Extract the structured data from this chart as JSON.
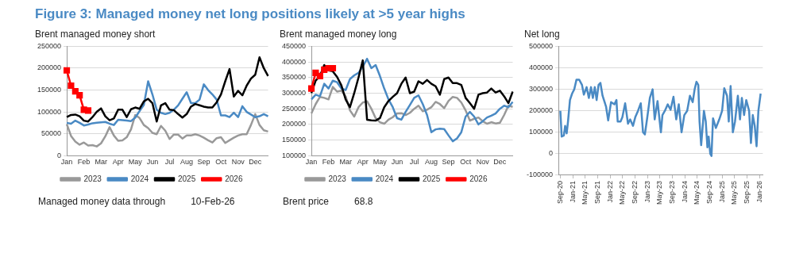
{
  "chart_data": [
    {
      "type": "line",
      "title": "Figure 3: Managed money net long positions likely at >5 year highs",
      "subtitle": "Brent managed money short",
      "categories": [
        "Jan",
        null,
        null,
        null,
        "Feb",
        null,
        null,
        null,
        "Mar",
        null,
        null,
        null,
        "Apr",
        null,
        null,
        null,
        "May",
        null,
        null,
        null,
        "Jun",
        null,
        null,
        null,
        "Jul",
        null,
        null,
        null,
        "Aug",
        null,
        null,
        null,
        "Sep",
        null,
        null,
        null,
        "Oct",
        null,
        null,
        null,
        "Nov",
        null,
        null,
        null,
        "Dec",
        null,
        null,
        null
      ],
      "ylim": [
        0,
        250000
      ],
      "yticks": [
        0,
        50000,
        100000,
        150000,
        200000,
        250000
      ],
      "grid": "y",
      "legend": "bottom",
      "annotations": [
        "Managed money data through",
        "10-Feb-26"
      ],
      "series": [
        {
          "name": "2023",
          "color": "#999999",
          "values": [
            72000,
            45000,
            32000,
            25000,
            30000,
            23000,
            24000,
            21000,
            28000,
            44000,
            65000,
            46000,
            34000,
            35000,
            42000,
            60000,
            93000,
            86000,
            70000,
            63000,
            52000,
            49000,
            68000,
            57000,
            38000,
            48000,
            48000,
            39000,
            46000,
            46000,
            49000,
            46000,
            41000,
            35000,
            30000,
            40000,
            42000,
            29000,
            35000,
            41000,
            46000,
            49000,
            49000,
            70000,
            95000,
            70000,
            58000,
            55000
          ]
        },
        {
          "name": "2024",
          "color": "#4a8ac4",
          "values": [
            75000,
            73000,
            80000,
            75000,
            69000,
            71000,
            74000,
            75000,
            76000,
            77000,
            73000,
            70000,
            82000,
            81000,
            80000,
            79000,
            87000,
            102000,
            116000,
            170000,
            140000,
            105000,
            98000,
            95000,
            98000,
            105000,
            115000,
            130000,
            145000,
            120000,
            120000,
            128000,
            163000,
            150000,
            140000,
            128000,
            92000,
            92000,
            88000,
            98000,
            88000,
            113000,
            100000,
            94000,
            88000,
            90000,
            95000,
            90000
          ]
        },
        {
          "name": "2025",
          "color": "#000000",
          "values": [
            88000,
            93000,
            94000,
            90000,
            80000,
            78000,
            88000,
            100000,
            108000,
            90000,
            81000,
            85000,
            105000,
            105000,
            88000,
            106000,
            110000,
            107000,
            124000,
            130000,
            120000,
            78000,
            115000,
            120000,
            105000,
            104000,
            95000,
            87000,
            95000,
            112000,
            118000,
            115000,
            112000,
            110000,
            110000,
            122000,
            140000,
            170000,
            198000,
            135000,
            148000,
            138000,
            160000,
            176000,
            185000,
            225000,
            200000,
            182000
          ]
        },
        {
          "name": "2026",
          "color": "#ff0000",
          "marker": "square",
          "values": [
            195000,
            160000,
            147000,
            138000,
            105000,
            103000,
            null,
            null,
            null,
            null,
            null,
            null,
            null,
            null,
            null,
            null,
            null,
            null,
            null,
            null,
            null,
            null,
            null,
            null,
            null,
            null,
            null,
            null,
            null,
            null,
            null,
            null,
            null,
            null,
            null,
            null,
            null,
            null,
            null,
            null,
            null,
            null,
            null,
            null,
            null,
            null,
            null,
            null
          ]
        }
      ]
    },
    {
      "type": "line",
      "title": "Brent managed money long",
      "categories": [
        "Jan",
        null,
        null,
        null,
        "Feb",
        null,
        null,
        null,
        "Mar",
        null,
        null,
        null,
        "Apr",
        null,
        null,
        null,
        "May",
        null,
        null,
        null,
        "Jun",
        null,
        null,
        null,
        "Jul",
        null,
        null,
        null,
        "Aug",
        null,
        null,
        null,
        "Sep",
        null,
        null,
        null,
        "Oct",
        null,
        null,
        null,
        "Nov",
        null,
        null,
        null,
        "Dec",
        null,
        null,
        null
      ],
      "ylim": [
        100000,
        450000
      ],
      "yticks": [
        100000,
        150000,
        200000,
        250000,
        300000,
        350000,
        400000,
        450000
      ],
      "grid": "y",
      "legend": "bottom",
      "annotations": [
        "Brent price",
        "68.8"
      ],
      "series": [
        {
          "name": "2023",
          "color": "#999999",
          "values": [
            235000,
            265000,
            288000,
            285000,
            280000,
            320000,
            305000,
            308000,
            290000,
            245000,
            225000,
            255000,
            270000,
            274000,
            250000,
            220000,
            207000,
            202000,
            215000,
            223000,
            235000,
            236000,
            230000,
            237000,
            250000,
            260000,
            242000,
            247000,
            255000,
            272000,
            265000,
            252000,
            275000,
            288000,
            285000,
            270000,
            245000,
            212000,
            218000,
            222000,
            210000,
            202000,
            207000,
            203000,
            205000,
            230000,
            260000,
            256000
          ]
        },
        {
          "name": "2024",
          "color": "#4a8ac4",
          "values": [
            280000,
            295000,
            290000,
            330000,
            315000,
            340000,
            335000,
            315000,
            310000,
            345000,
            357000,
            365000,
            385000,
            410000,
            380000,
            390000,
            355000,
            315000,
            280000,
            255000,
            220000,
            215000,
            240000,
            262000,
            285000,
            293000,
            265000,
            230000,
            175000,
            184000,
            186000,
            185000,
            165000,
            146000,
            155000,
            175000,
            225000,
            240000,
            225000,
            200000,
            210000,
            222000,
            228000,
            235000,
            250000,
            260000,
            255000,
            272000
          ]
        },
        {
          "name": "2025",
          "color": "#000000",
          "values": [
            300000,
            340000,
            355000,
            390000,
            373000,
            370000,
            352000,
            325000,
            280000,
            255000,
            300000,
            350000,
            405000,
            215000,
            213000,
            212000,
            220000,
            255000,
            275000,
            288000,
            300000,
            330000,
            350000,
            300000,
            305000,
            338000,
            330000,
            342000,
            330000,
            322000,
            295000,
            345000,
            350000,
            332000,
            332000,
            326000,
            285000,
            268000,
            250000,
            295000,
            300000,
            302000,
            315000,
            302000,
            308000,
            290000,
            268000,
            305000
          ]
        },
        {
          "name": "2026",
          "color": "#ff0000",
          "marker": "square",
          "values": [
            315000,
            365000,
            355000,
            375000,
            380000,
            380000,
            null,
            null,
            null,
            null,
            null,
            null,
            null,
            null,
            null,
            null,
            null,
            null,
            null,
            null,
            null,
            null,
            null,
            null,
            null,
            null,
            null,
            null,
            null,
            null,
            null,
            null,
            null,
            null,
            null,
            null,
            null,
            null,
            null,
            null,
            null,
            null,
            null,
            null,
            null,
            null,
            null,
            null
          ]
        }
      ]
    },
    {
      "type": "line",
      "title": "Net long",
      "xlim": [
        "2020-08-13",
        "2026-02-03"
      ],
      "xticks": [
        {
          "value": "2020-09-01",
          "label": "Sep-20"
        },
        {
          "value": "2021-01-01",
          "label": "Jan-21"
        },
        {
          "value": "2021-05-01",
          "label": "May-21"
        },
        {
          "value": "2021-09-01",
          "label": "Sep-21"
        },
        {
          "value": "2022-01-01",
          "label": "Jan-22"
        },
        {
          "value": "2022-05-01",
          "label": "May-22"
        },
        {
          "value": "2022-09-01",
          "label": "Sep-22"
        },
        {
          "value": "2023-01-01",
          "label": "Jan-23"
        },
        {
          "value": "2023-05-01",
          "label": "May-23"
        },
        {
          "value": "2023-09-01",
          "label": "Sep-23"
        },
        {
          "value": "2024-01-01",
          "label": "Jan-24"
        },
        {
          "value": "2024-05-01",
          "label": "May-24"
        },
        {
          "value": "2024-09-01",
          "label": "Sep-24"
        },
        {
          "value": "2025-01-01",
          "label": "Jan-25"
        },
        {
          "value": "2025-05-01",
          "label": "May-25"
        },
        {
          "value": "2025-09-01",
          "label": "Sep-25"
        },
        {
          "value": "2026-01-01",
          "label": "Jan-26"
        }
      ],
      "ylim": [
        -100000,
        500000
      ],
      "yticks": [
        -100000,
        0,
        100000,
        200000,
        300000,
        400000,
        500000
      ],
      "grid": "y",
      "series": [
        {
          "color": "#4a8ac4",
          "x": [
            "2020-09-01",
            "2020-09-14",
            "2020-10-05",
            "2020-10-18",
            "2020-11-02",
            "2020-11-15",
            "2020-12-04",
            "2020-12-25",
            "2021-01-15",
            "2021-02-06",
            "2021-03-04",
            "2021-04-01",
            "2021-04-19",
            "2021-05-16",
            "2021-06-07",
            "2021-06-28",
            "2021-07-16",
            "2021-08-04",
            "2021-08-22",
            "2021-09-10",
            "2021-09-28",
            "2021-10-19",
            "2021-11-22",
            "2021-12-13",
            "2022-01-10",
            "2022-02-12",
            "2022-03-04",
            "2022-03-16",
            "2022-04-13",
            "2022-05-01",
            "2022-05-28",
            "2022-06-25",
            "2022-07-16",
            "2022-08-13",
            "2022-09-04",
            "2022-10-01",
            "2022-10-28",
            "2022-11-19",
            "2022-12-07",
            "2022-12-28",
            "2023-01-25",
            "2023-02-21",
            "2023-03-13",
            "2023-04-10",
            "2023-05-13",
            "2023-05-28",
            "2023-06-21",
            "2023-07-19",
            "2023-08-16",
            "2023-09-13",
            "2023-10-10",
            "2023-11-04",
            "2023-12-01",
            "2023-12-28",
            "2024-01-25",
            "2024-02-21",
            "2024-03-19",
            "2024-04-07",
            "2024-04-25",
            "2024-05-13",
            "2024-05-25",
            "2024-06-10",
            "2024-07-07",
            "2024-07-25",
            "2024-08-10",
            "2024-08-22",
            "2024-09-07",
            "2024-09-19",
            "2024-10-04",
            "2024-11-01",
            "2024-12-04",
            "2025-01-01",
            "2025-01-22",
            "2025-02-18",
            "2025-03-07",
            "2025-03-25",
            "2025-04-16",
            "2025-05-07",
            "2025-06-04",
            "2025-06-25",
            "2025-07-13",
            "2025-08-04",
            "2025-08-25",
            "2025-09-22",
            "2025-10-10",
            "2025-10-28",
            "2025-11-16",
            "2025-12-04",
            "2025-12-22",
            "2026-01-13"
          ],
          "values": [
            200000,
            80000,
            85000,
            130000,
            95000,
            150000,
            250000,
            280000,
            300000,
            345000,
            345000,
            320000,
            275000,
            310000,
            260000,
            310000,
            260000,
            310000,
            250000,
            320000,
            330000,
            270000,
            220000,
            155000,
            240000,
            230000,
            250000,
            150000,
            150000,
            170000,
            235000,
            140000,
            160000,
            130000,
            170000,
            200000,
            235000,
            100000,
            90000,
            160000,
            260000,
            300000,
            160000,
            245000,
            100000,
            180000,
            200000,
            230000,
            205000,
            265000,
            160000,
            230000,
            100000,
            180000,
            200000,
            270000,
            240000,
            300000,
            335000,
            320000,
            150000,
            40000,
            200000,
            150000,
            30000,
            80000,
            0,
            -10000,
            165000,
            120000,
            160000,
            200000,
            305000,
            270000,
            150000,
            315000,
            100000,
            150000,
            270000,
            160000,
            260000,
            180000,
            250000,
            200000,
            50000,
            180000,
            130000,
            35000,
            200000,
            280000
          ]
        }
      ]
    }
  ]
}
